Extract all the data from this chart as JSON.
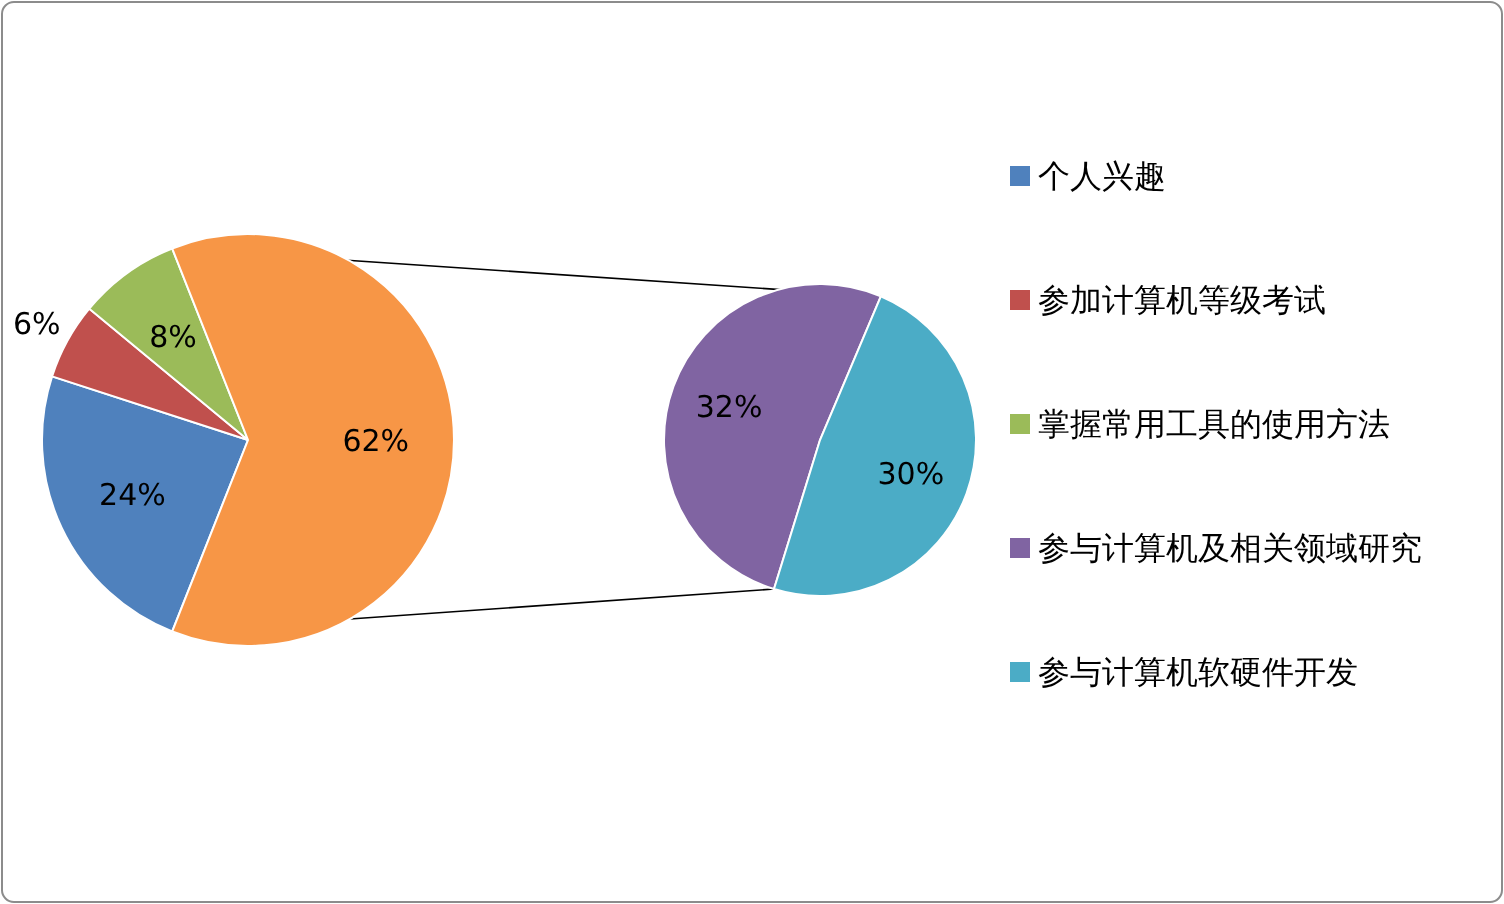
{
  "chart_data": [
    {
      "type": "pie",
      "categories": [
        "个人兴趣",
        "参加计算机等级考试",
        "掌握常用工具的使用方法",
        null
      ],
      "values": [
        24,
        6,
        8,
        62
      ],
      "value_labels": [
        "24%",
        "6%",
        "8%",
        "62%"
      ],
      "colors": [
        "#4f81bd",
        "#c0504d",
        "#9bbb59",
        "#f79646"
      ],
      "legend": "right"
    },
    {
      "type": "pie",
      "categories": [
        "参与计算机及相关领域研究",
        "参与计算机软硬件开发"
      ],
      "values": [
        32,
        30
      ],
      "value_labels": [
        "32%",
        "30%"
      ],
      "colors": [
        "#8064a2",
        "#4bacc6"
      ],
      "legend": "right"
    }
  ]
}
